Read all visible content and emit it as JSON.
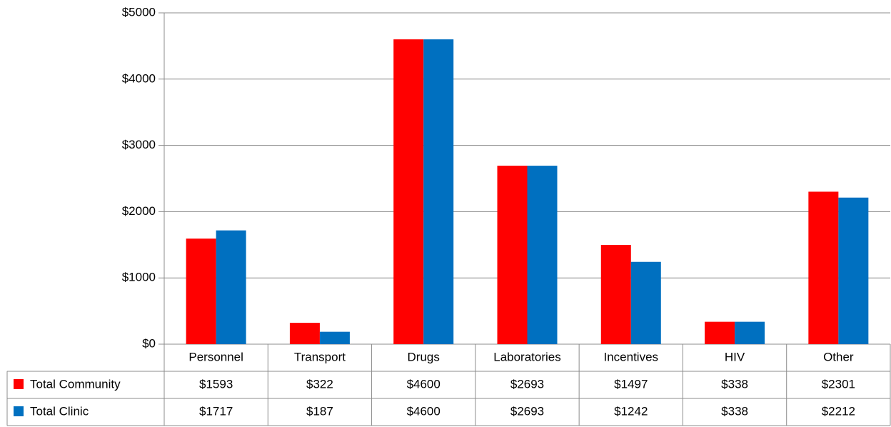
{
  "chart_data": {
    "type": "bar",
    "categories": [
      "Personnel",
      "Transport",
      "Drugs",
      "Laboratories",
      "Incentives",
      "HIV",
      "Other"
    ],
    "series": [
      {
        "name": "Total Community",
        "color": "#ff0000",
        "values": [
          1593,
          322,
          4600,
          2693,
          1497,
          338,
          2301
        ],
        "value_labels": [
          "$1593",
          "$322",
          "$4600",
          "$2693",
          "$1497",
          "$338",
          "$2301"
        ]
      },
      {
        "name": "Total Clinic",
        "color": "#0070c0",
        "values": [
          1717,
          187,
          4600,
          2693,
          1242,
          338,
          2212
        ],
        "value_labels": [
          "$1717",
          "$187",
          "$4600",
          "$2693",
          "$1242",
          "$338",
          "$2212"
        ]
      }
    ],
    "ylim": [
      0,
      5000
    ],
    "yticks": [
      {
        "value": 0,
        "label": "$0"
      },
      {
        "value": 1000,
        "label": "$1000"
      },
      {
        "value": 2000,
        "label": "$2000"
      },
      {
        "value": 3000,
        "label": "$3000"
      },
      {
        "value": 4000,
        "label": "$4000"
      },
      {
        "value": 5000,
        "label": "$5000"
      }
    ],
    "grid": true
  }
}
